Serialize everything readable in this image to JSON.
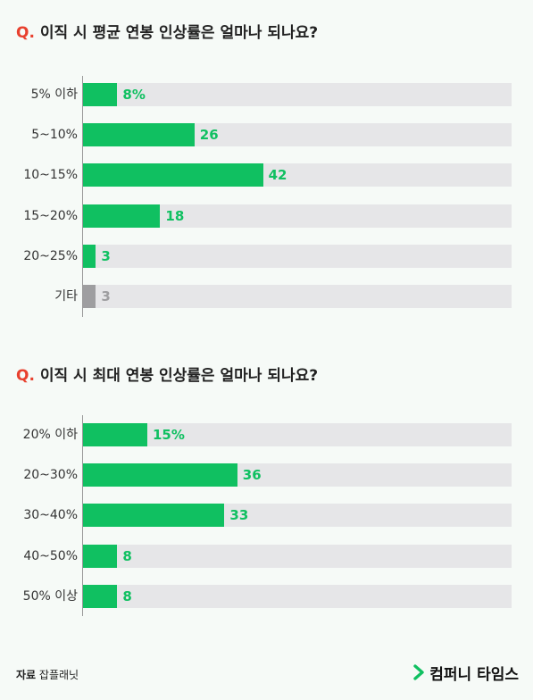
{
  "colors": {
    "accent": "#10c061",
    "muted": "#9e9ea0",
    "track": "#e6e6e8",
    "question_mark": "#e8402e"
  },
  "chart_data": [
    {
      "type": "bar",
      "orientation": "horizontal",
      "title": "이직 시 평균 연봉 인상률은 얼마나 되나요?",
      "title_prefix": "Q.",
      "categories": [
        "5% 이하",
        "5~10%",
        "10~15%",
        "15~20%",
        "20~25%",
        "기타"
      ],
      "values": [
        8,
        26,
        42,
        18,
        3,
        3
      ],
      "value_labels": [
        "8%",
        "26",
        "42",
        "18",
        "3",
        "3"
      ],
      "bar_colors": [
        "#10c061",
        "#10c061",
        "#10c061",
        "#10c061",
        "#10c061",
        "#9e9ea0"
      ],
      "xlim": [
        0,
        100
      ]
    },
    {
      "type": "bar",
      "orientation": "horizontal",
      "title": "이직 시 최대 연봉 인상률은 얼마나 되나요?",
      "title_prefix": "Q.",
      "categories": [
        "20% 이하",
        "20~30%",
        "30~40%",
        "40~50%",
        "50% 이상"
      ],
      "values": [
        15,
        36,
        33,
        8,
        8
      ],
      "value_labels": [
        "15%",
        "36",
        "33",
        "8",
        "8"
      ],
      "bar_colors": [
        "#10c061",
        "#10c061",
        "#10c061",
        "#10c061",
        "#10c061"
      ],
      "xlim": [
        0,
        100
      ]
    }
  ],
  "footer": {
    "source_label": "자료",
    "source_name": "잡플래닛",
    "logo_text": "컴퍼니 타임스",
    "logo_icon": "chevron-right-icon"
  }
}
